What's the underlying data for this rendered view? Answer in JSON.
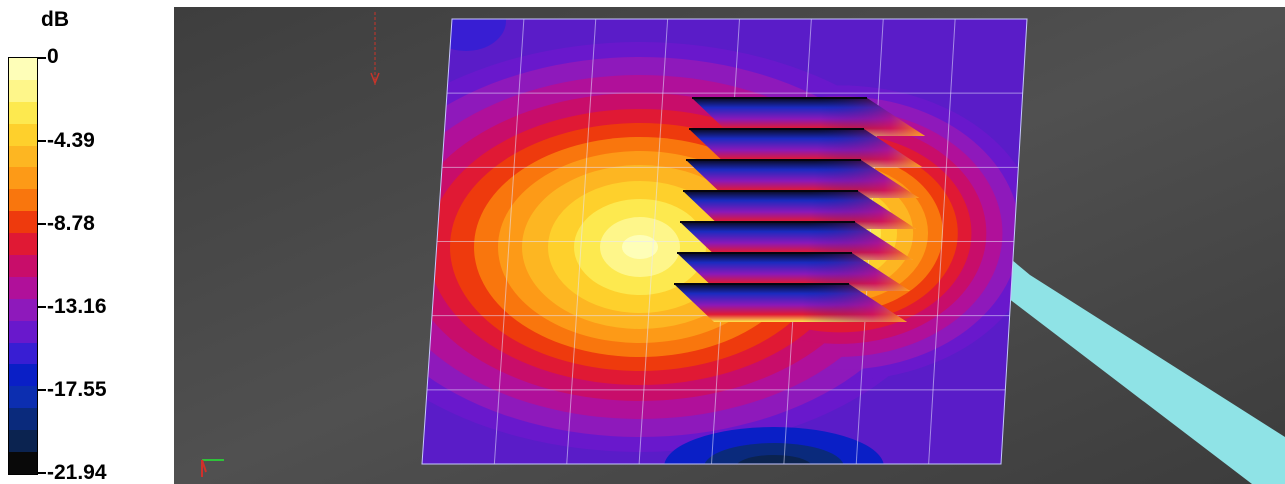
{
  "legend": {
    "unit": "dB",
    "ticks": [
      "0",
      "-4.39",
      "-8.78",
      "-13.16",
      "-17.55",
      "-21.94"
    ],
    "colors": [
      "#fefeb8",
      "#fef68a",
      "#fde94f",
      "#fed02c",
      "#fdb622",
      "#fd9a17",
      "#f9760d",
      "#ee3a0d",
      "#e01934",
      "#c80d6a",
      "#b0109a",
      "#8e19bb",
      "#6918cc",
      "#381ed3",
      "#0a1fc6",
      "#0c2eb0",
      "#0a2a7c",
      "#0b2350",
      "#090909"
    ]
  },
  "viewport": {
    "background": "#4a4a4a",
    "beam_color": "#8fe3e6"
  }
}
